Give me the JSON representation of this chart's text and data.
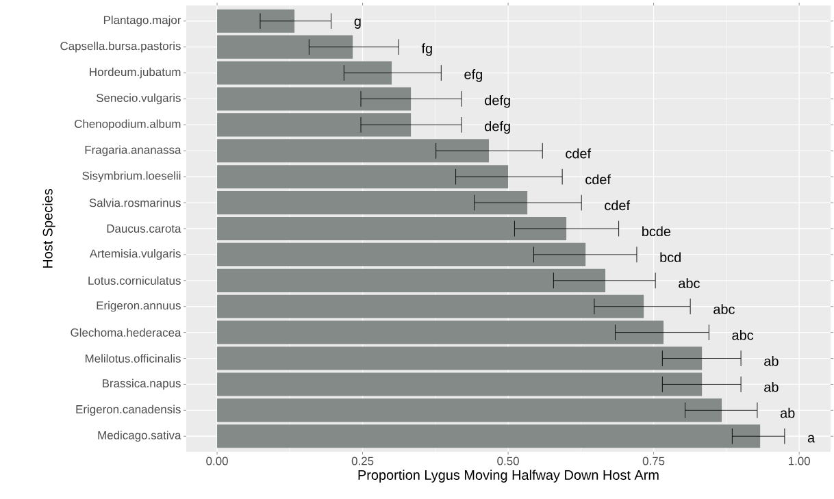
{
  "chart_data": {
    "type": "bar",
    "orientation": "horizontal",
    "xlabel": "Proportion Lygus Moving Halfway Down Host Arm",
    "ylabel": "Host Species",
    "categories": [
      "Plantago.major",
      "Capsella.bursa.pastoris",
      "Hordeum.jubatum",
      "Senecio.vulgaris",
      "Chenopodium.album",
      "Fragaria.ananassa",
      "Sisymbrium.loeselii",
      "Salvia.rosmarinus",
      "Daucus.carota",
      "Artemisia.vulgaris",
      "Lotus.corniculatus",
      "Erigeron.annuus",
      "Glechoma.hederacea",
      "Melilotus.officinalis",
      "Brassica.napus",
      "Erigeron.canadensis",
      "Medicago.sativa"
    ],
    "values": [
      0.133,
      0.233,
      0.3,
      0.333,
      0.333,
      0.467,
      0.5,
      0.533,
      0.6,
      0.633,
      0.667,
      0.733,
      0.767,
      0.833,
      0.833,
      0.867,
      0.933
    ],
    "errors": [
      [
        0.074,
        0.196
      ],
      [
        0.158,
        0.312
      ],
      [
        0.218,
        0.385
      ],
      [
        0.247,
        0.42
      ],
      [
        0.247,
        0.42
      ],
      [
        0.376,
        0.559
      ],
      [
        0.41,
        0.593
      ],
      [
        0.442,
        0.626
      ],
      [
        0.511,
        0.69
      ],
      [
        0.544,
        0.721
      ],
      [
        0.578,
        0.753
      ],
      [
        0.648,
        0.813
      ],
      [
        0.684,
        0.845
      ],
      [
        0.765,
        0.9
      ],
      [
        0.765,
        0.9
      ],
      [
        0.804,
        0.928
      ],
      [
        0.885,
        0.975
      ]
    ],
    "color": "#838a88",
    "xlim": [
      -0.053,
      1.054
    ],
    "xticks": [
      {
        "value": 0,
        "label": "0.00"
      },
      {
        "value": 0.25,
        "label": "0.25"
      },
      {
        "value": 0.5,
        "label": "0.50"
      },
      {
        "value": 0.75,
        "label": "0.75"
      },
      {
        "value": 1,
        "label": "1.00"
      }
    ],
    "grid": true,
    "annotations": [
      "g",
      "fg",
      "efg",
      "defg",
      "defg",
      "cdef",
      "cdef",
      "cdef",
      "bcde",
      "bcd",
      "abc",
      "abc",
      "abc",
      "ab",
      "ab",
      "ab",
      "a"
    ]
  }
}
